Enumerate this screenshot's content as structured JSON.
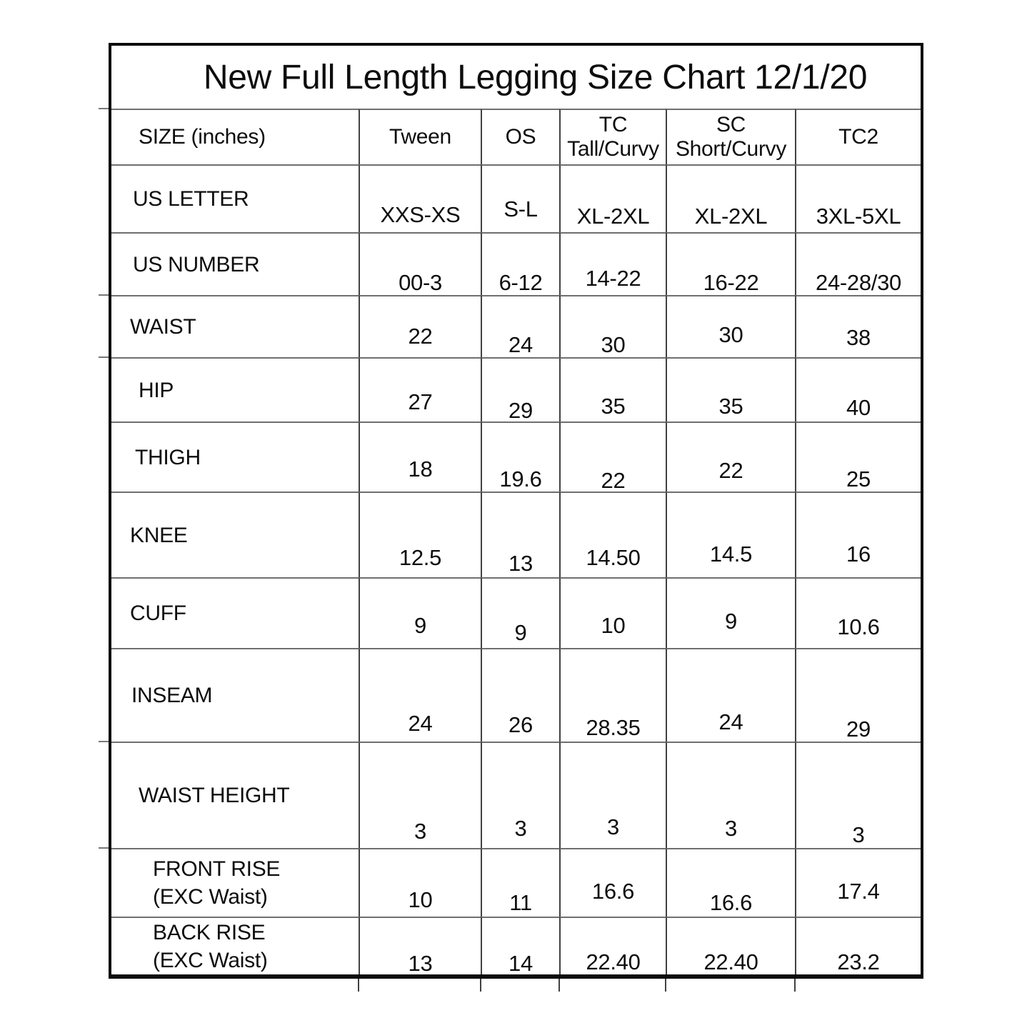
{
  "title": "New Full Length Legging Size Chart 12/1/20",
  "table": {
    "corner_label": "SIZE (inches)",
    "columns": [
      {
        "label": "Tween",
        "sublabel": ""
      },
      {
        "label": "OS",
        "sublabel": ""
      },
      {
        "label": "TC",
        "sublabel": "Tall/Curvy"
      },
      {
        "label": "SC",
        "sublabel": "Short/Curvy"
      },
      {
        "label": "TC2",
        "sublabel": ""
      }
    ],
    "rows": [
      {
        "label": "US LETTER",
        "values": [
          "XXS-XS",
          "S-L",
          "XL-2XL",
          "XL-2XL",
          "3XL-5XL"
        ]
      },
      {
        "label": "US NUMBER",
        "values": [
          "00-3",
          "6-12",
          "14-22",
          "16-22",
          "24-28/30"
        ]
      },
      {
        "label": "WAIST",
        "values": [
          "22",
          "24",
          "30",
          "30",
          "38"
        ]
      },
      {
        "label": "HIP",
        "values": [
          "27",
          "29",
          "35",
          "35",
          "40"
        ]
      },
      {
        "label": "THIGH",
        "values": [
          "18",
          "19.6",
          "22",
          "22",
          "25"
        ]
      },
      {
        "label": "KNEE",
        "values": [
          "12.5",
          "13",
          "14.50",
          "14.5",
          "16"
        ]
      },
      {
        "label": "CUFF",
        "values": [
          "9",
          "9",
          "10",
          "9",
          "10.6"
        ]
      },
      {
        "label": "INSEAM",
        "values": [
          "24",
          "26",
          "28.35",
          "24",
          "29"
        ]
      },
      {
        "label": "WAIST HEIGHT",
        "values": [
          "3",
          "3",
          "3",
          "3",
          "3"
        ]
      },
      {
        "label": "FRONT RISE\n(EXC Waist)",
        "values": [
          "10",
          "11",
          "16.6",
          "16.6",
          "17.4"
        ]
      },
      {
        "label": "BACK RISE\n(EXC Waist)",
        "values": [
          "13",
          "14",
          "22.40",
          "22.40",
          "23.2"
        ]
      }
    ]
  }
}
